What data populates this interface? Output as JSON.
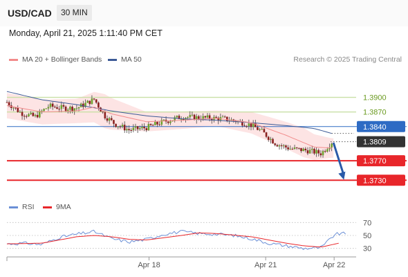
{
  "header": {
    "symbol": "USD/CAD",
    "timeframe": "30 MIN"
  },
  "datetime": "Monday, April 21, 2025 1:11:40 PM CET",
  "legend": {
    "ma20": "MA 20 + Bollinger Bands",
    "ma50": "MA 50",
    "rsi": "RSI",
    "ma9": "9MA",
    "credit": "Research © 2025 Trading Central"
  },
  "colors": {
    "ma20": "#f28b8b",
    "ma50": "#3c5a96",
    "band": "#fde1e1",
    "resistance": "#c9e0a6",
    "support": "#e8262a",
    "pivot": "#2e6bc4",
    "current": "#333333",
    "arrow": "#2a5aa8",
    "rsi": "#6a8fd6",
    "rsi_ma": "#e8262a"
  },
  "chart_data": [
    {
      "type": "candlestick",
      "x_ticks": [
        "Apr 18",
        "Apr 21",
        "Apr 22"
      ],
      "ylim": [
        1.3702,
        1.3932
      ],
      "levels": [
        {
          "label": "1.3900",
          "value": 1.39,
          "kind": "resistance"
        },
        {
          "label": "1.3870",
          "value": 1.387,
          "kind": "resistance"
        },
        {
          "label": "1.3840",
          "value": 1.384,
          "kind": "pivot"
        },
        {
          "label": "1.3809",
          "value": 1.3809,
          "kind": "current"
        },
        {
          "label": "1.3770",
          "value": 1.377,
          "kind": "support"
        },
        {
          "label": "1.3730",
          "value": 1.373,
          "kind": "support"
        }
      ],
      "forecast_arrow": {
        "from": [
          0.935,
          1.3807
        ],
        "to": [
          0.965,
          1.3731
        ]
      },
      "anchors": [
        [
          0.0,
          1.389
        ],
        [
          0.04,
          1.3868
        ],
        [
          0.08,
          1.386
        ],
        [
          0.12,
          1.3882
        ],
        [
          0.16,
          1.3878
        ],
        [
          0.2,
          1.3878
        ],
        [
          0.22,
          1.3885
        ],
        [
          0.25,
          1.3896
        ],
        [
          0.28,
          1.3862
        ],
        [
          0.31,
          1.3845
        ],
        [
          0.35,
          1.3833
        ],
        [
          0.4,
          1.3838
        ],
        [
          0.44,
          1.3848
        ],
        [
          0.5,
          1.386
        ],
        [
          0.56,
          1.3858
        ],
        [
          0.62,
          1.3856
        ],
        [
          0.66,
          1.3851
        ],
        [
          0.7,
          1.3843
        ],
        [
          0.73,
          1.383
        ],
        [
          0.77,
          1.3805
        ],
        [
          0.81,
          1.3795
        ],
        [
          0.86,
          1.3791
        ],
        [
          0.9,
          1.3785
        ],
        [
          0.93,
          1.3808
        ]
      ],
      "ma50_anchors": [
        [
          0.0,
          1.3912
        ],
        [
          0.1,
          1.3895
        ],
        [
          0.2,
          1.3885
        ],
        [
          0.3,
          1.3872
        ],
        [
          0.4,
          1.3862
        ],
        [
          0.5,
          1.3856
        ],
        [
          0.6,
          1.3853
        ],
        [
          0.7,
          1.3848
        ],
        [
          0.8,
          1.3842
        ],
        [
          0.88,
          1.3836
        ],
        [
          0.93,
          1.3826
        ]
      ],
      "ma20_anchors": [
        [
          0.0,
          1.3883
        ],
        [
          0.1,
          1.387
        ],
        [
          0.2,
          1.3872
        ],
        [
          0.25,
          1.388
        ],
        [
          0.3,
          1.3866
        ],
        [
          0.4,
          1.385
        ],
        [
          0.5,
          1.3853
        ],
        [
          0.6,
          1.3857
        ],
        [
          0.7,
          1.3848
        ],
        [
          0.8,
          1.3822
        ],
        [
          0.88,
          1.3798
        ],
        [
          0.93,
          1.3796
        ]
      ],
      "band_width_anchors": [
        [
          0.0,
          0.0026
        ],
        [
          0.2,
          0.0025
        ],
        [
          0.28,
          0.0035
        ],
        [
          0.4,
          0.002
        ],
        [
          0.6,
          0.0016
        ],
        [
          0.75,
          0.0025
        ],
        [
          0.85,
          0.003
        ],
        [
          0.93,
          0.002
        ]
      ]
    },
    {
      "type": "line",
      "series": [
        {
          "name": "RSI"
        },
        {
          "name": "9MA"
        }
      ],
      "ylim": [
        20,
        80
      ],
      "y_ticks": [
        "70",
        "50",
        "30"
      ],
      "rsi_anchors": [
        [
          0.0,
          37
        ],
        [
          0.05,
          38
        ],
        [
          0.1,
          36
        ],
        [
          0.15,
          47
        ],
        [
          0.2,
          52
        ],
        [
          0.25,
          56
        ],
        [
          0.3,
          45
        ],
        [
          0.35,
          40
        ],
        [
          0.4,
          44
        ],
        [
          0.45,
          52
        ],
        [
          0.5,
          56
        ],
        [
          0.55,
          53
        ],
        [
          0.6,
          52
        ],
        [
          0.65,
          50
        ],
        [
          0.7,
          45
        ],
        [
          0.75,
          38
        ],
        [
          0.8,
          34
        ],
        [
          0.85,
          30
        ],
        [
          0.9,
          31
        ],
        [
          0.94,
          52
        ],
        [
          0.97,
          53
        ]
      ],
      "rsi_ma_anchors": [
        [
          0.0,
          37
        ],
        [
          0.1,
          38
        ],
        [
          0.2,
          48
        ],
        [
          0.25,
          50
        ],
        [
          0.3,
          48
        ],
        [
          0.35,
          44
        ],
        [
          0.4,
          43
        ],
        [
          0.5,
          50
        ],
        [
          0.55,
          54
        ],
        [
          0.6,
          53
        ],
        [
          0.7,
          48
        ],
        [
          0.8,
          38
        ],
        [
          0.85,
          34
        ],
        [
          0.9,
          32
        ],
        [
          0.95,
          38
        ]
      ]
    }
  ]
}
